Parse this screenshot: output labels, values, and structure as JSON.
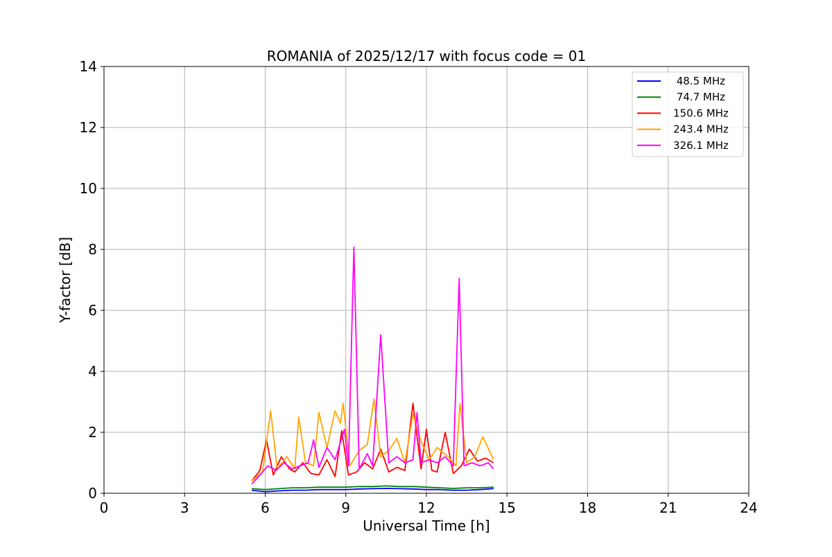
{
  "chart_data": {
    "type": "line",
    "title": "ROMANIA of 2025/12/17 with focus code = 01",
    "xlabel": "Universal Time [h]",
    "ylabel": "Y-factor [dB]",
    "xlim": [
      0,
      24
    ],
    "ylim": [
      0,
      14
    ],
    "xticks": [
      0,
      3,
      6,
      9,
      12,
      15,
      18,
      21,
      24
    ],
    "yticks": [
      0,
      2,
      4,
      6,
      8,
      10,
      12,
      14
    ],
    "grid": true,
    "legend_position": "top-right",
    "series": [
      {
        "name": " 48.5 MHz",
        "color": "#0000ff",
        "x": [
          5.5,
          6.0,
          6.5,
          7.0,
          7.5,
          8.0,
          8.5,
          9.0,
          9.5,
          10.0,
          10.5,
          11.0,
          11.5,
          12.0,
          12.5,
          13.0,
          13.5,
          14.0,
          14.5
        ],
        "y": [
          0.1,
          0.05,
          0.08,
          0.1,
          0.1,
          0.12,
          0.12,
          0.12,
          0.14,
          0.15,
          0.16,
          0.15,
          0.14,
          0.12,
          0.12,
          0.1,
          0.1,
          0.12,
          0.15
        ]
      },
      {
        "name": " 74.7 MHz",
        "color": "#008000",
        "x": [
          5.5,
          6.0,
          6.5,
          7.0,
          7.5,
          8.0,
          8.5,
          9.0,
          9.5,
          10.0,
          10.5,
          11.0,
          11.5,
          12.0,
          12.5,
          13.0,
          13.5,
          14.0,
          14.5
        ],
        "y": [
          0.15,
          0.12,
          0.15,
          0.18,
          0.18,
          0.2,
          0.2,
          0.2,
          0.22,
          0.22,
          0.24,
          0.22,
          0.22,
          0.2,
          0.18,
          0.16,
          0.18,
          0.18,
          0.2
        ]
      },
      {
        "name": "150.6 MHz",
        "color": "#ff0000",
        "x": [
          5.5,
          5.8,
          6.05,
          6.3,
          6.6,
          6.9,
          7.1,
          7.4,
          7.7,
          8.0,
          8.3,
          8.6,
          8.85,
          9.1,
          9.4,
          9.7,
          10.0,
          10.3,
          10.6,
          10.9,
          11.2,
          11.5,
          11.8,
          12.0,
          12.2,
          12.4,
          12.7,
          13.0,
          13.3,
          13.6,
          13.9,
          14.2,
          14.5
        ],
        "y": [
          0.4,
          0.75,
          1.75,
          0.6,
          1.2,
          0.8,
          0.7,
          1.0,
          0.65,
          0.6,
          1.1,
          0.55,
          2.05,
          0.6,
          0.7,
          1.0,
          0.8,
          1.45,
          0.7,
          0.85,
          0.75,
          2.95,
          0.8,
          2.1,
          0.75,
          0.7,
          2.0,
          0.65,
          0.9,
          1.45,
          1.05,
          1.15,
          1.0
        ]
      },
      {
        "name": "243.4 MHz",
        "color": "#ffa500",
        "x": [
          5.5,
          5.9,
          6.2,
          6.45,
          6.8,
          7.1,
          7.25,
          7.5,
          7.8,
          8.0,
          8.3,
          8.6,
          8.8,
          8.9,
          9.15,
          9.5,
          9.8,
          10.05,
          10.3,
          10.6,
          10.9,
          11.2,
          11.5,
          11.8,
          12.1,
          12.4,
          12.8,
          13.1,
          13.25,
          13.5,
          13.8,
          14.1,
          14.5
        ],
        "y": [
          0.4,
          0.7,
          2.7,
          0.8,
          1.2,
          0.8,
          2.5,
          1.0,
          0.9,
          2.65,
          1.5,
          2.7,
          2.3,
          2.95,
          0.9,
          1.4,
          1.6,
          3.1,
          1.2,
          1.4,
          1.8,
          1.0,
          2.6,
          1.7,
          1.1,
          1.5,
          1.2,
          0.9,
          2.95,
          1.0,
          1.2,
          1.85,
          1.1
        ]
      },
      {
        "name": "326.1 MHz",
        "color": "#ff00ff",
        "x": [
          5.5,
          5.8,
          6.1,
          6.4,
          6.7,
          7.0,
          7.3,
          7.6,
          7.8,
          8.0,
          8.3,
          8.6,
          8.95,
          9.1,
          9.3,
          9.5,
          9.8,
          10.0,
          10.3,
          10.6,
          10.9,
          11.2,
          11.5,
          11.65,
          11.8,
          12.1,
          12.4,
          12.7,
          13.0,
          13.22,
          13.4,
          13.7,
          14.0,
          14.3,
          14.5
        ],
        "y": [
          0.3,
          0.6,
          0.9,
          0.75,
          1.0,
          0.8,
          0.9,
          1.0,
          1.75,
          0.85,
          1.5,
          1.1,
          2.1,
          0.9,
          8.08,
          0.8,
          1.3,
          0.9,
          5.2,
          1.0,
          1.2,
          1.0,
          1.1,
          2.65,
          1.0,
          1.1,
          1.0,
          1.2,
          0.9,
          7.05,
          0.9,
          1.0,
          0.9,
          1.0,
          0.8
        ]
      }
    ]
  }
}
